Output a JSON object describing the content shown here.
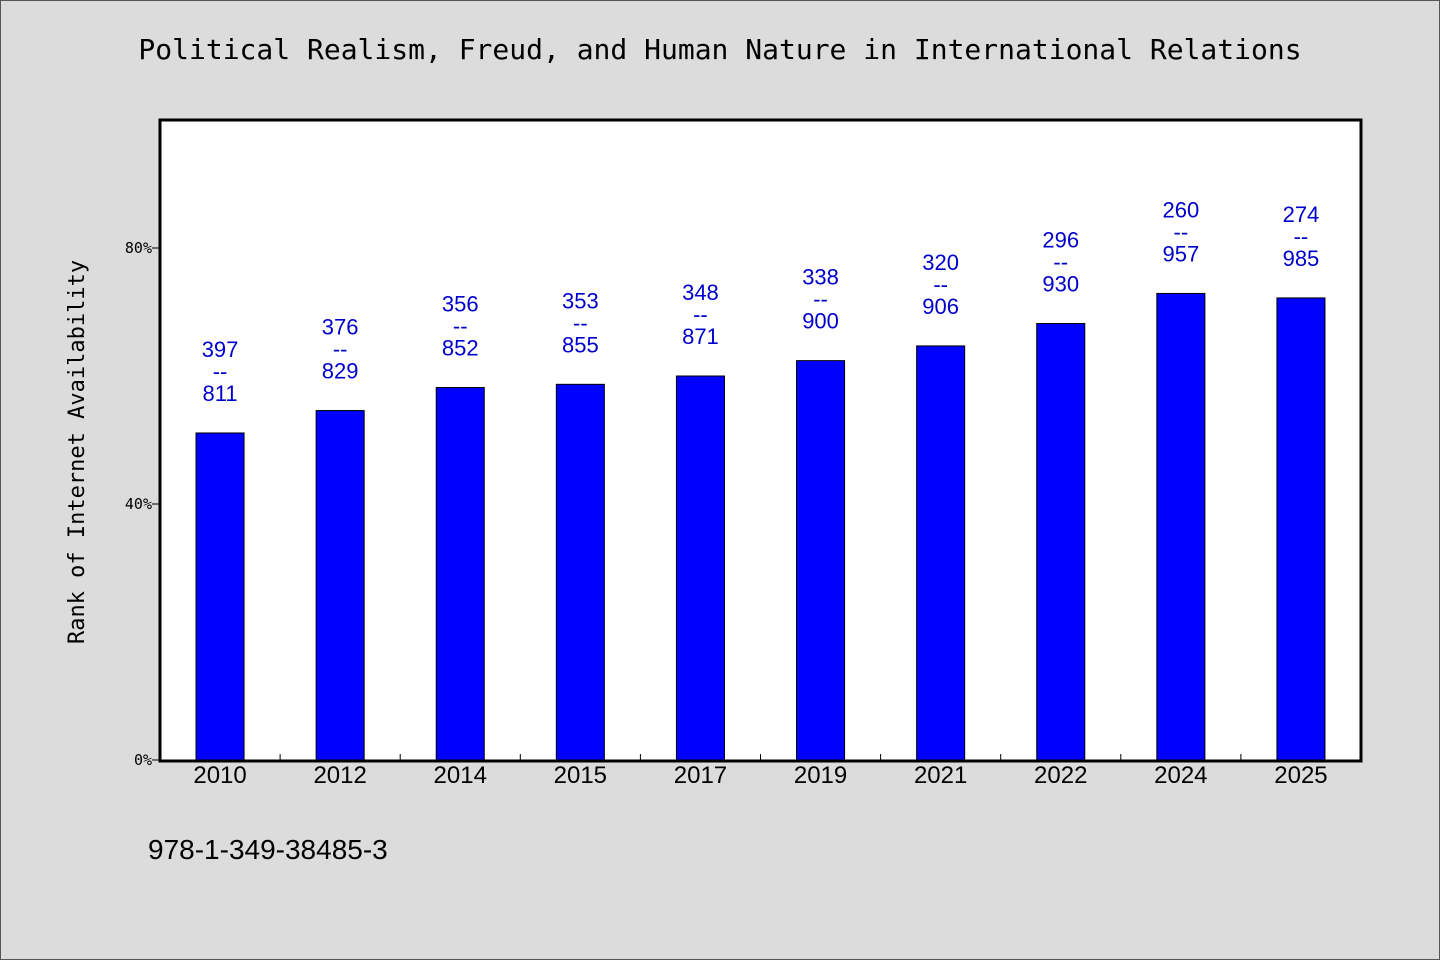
{
  "chart_data": {
    "type": "bar",
    "title": "Political Realism, Freud, and Human Nature in International Relations",
    "xlabel": "",
    "ylabel": "Rank of Internet Availability",
    "categories": [
      "2010",
      "2012",
      "2014",
      "2015",
      "2017",
      "2019",
      "2021",
      "2022",
      "2024",
      "2025"
    ],
    "values": [
      51.1,
      54.6,
      58.2,
      58.7,
      60.0,
      62.4,
      64.7,
      68.2,
      72.9,
      72.2
    ],
    "label_top": [
      "397",
      "376",
      "356",
      "353",
      "348",
      "338",
      "320",
      "296",
      "260",
      "274"
    ],
    "label_bottom": [
      "811",
      "829",
      "852",
      "855",
      "871",
      "900",
      "906",
      "930",
      "957",
      "985"
    ],
    "label_separator": "--",
    "ylim": [
      0,
      100
    ],
    "yticks": [
      0,
      40,
      80
    ],
    "ytick_labels": [
      "0%",
      "40%",
      "80%"
    ],
    "grid": false,
    "legend": "none",
    "bar_color": "#0000ff",
    "label_color": "#0000cc"
  },
  "footer": {
    "isbn": "978-1-349-38485-3"
  }
}
